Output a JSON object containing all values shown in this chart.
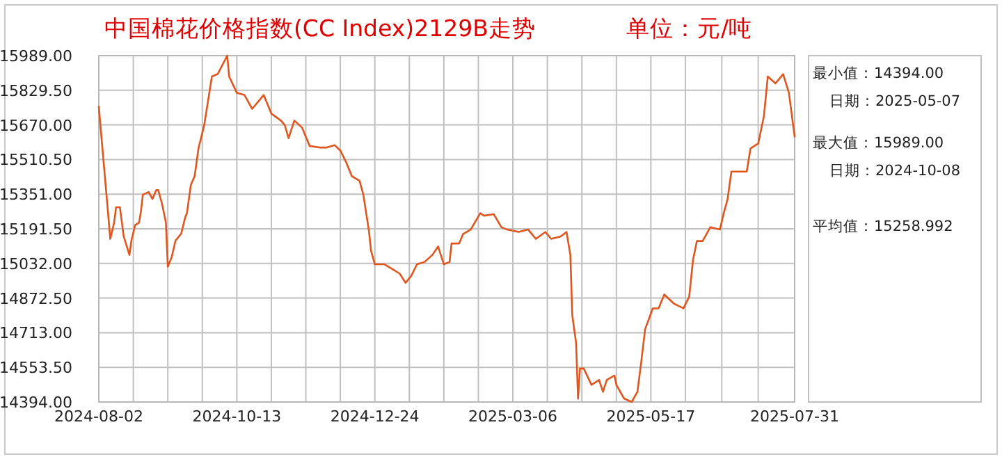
{
  "chart_data": {
    "type": "line",
    "title": "中国棉花价格指数(CC Index)2129B走势",
    "subtitle": "单位：元/吨",
    "annotations": [
      "最小值：14394.00",
      "日期：2025-05-07",
      "最大值：15989.00",
      "日期：2024-10-08",
      "平均值：15258.992"
    ],
    "x": [
      "2024-08-02",
      "2024-08-08",
      "2024-08-10",
      "2024-08-11",
      "2024-08-13",
      "2024-08-15",
      "2024-08-18",
      "2024-08-19",
      "2024-08-21",
      "2024-08-23",
      "2024-08-24",
      "2024-08-25",
      "2024-08-28",
      "2024-08-30",
      "2024-09-01",
      "2024-09-02",
      "2024-09-04",
      "2024-09-06",
      "2024-09-07",
      "2024-09-09",
      "2024-09-11",
      "2024-09-14",
      "2024-09-16",
      "2024-09-17",
      "2024-09-19",
      "2024-09-21",
      "2024-09-23",
      "2024-09-26",
      "2024-09-30",
      "2024-10-03",
      "2024-10-08",
      "2024-10-09",
      "2024-10-13",
      "2024-10-17",
      "2024-10-21",
      "2024-10-25",
      "2024-10-27",
      "2024-10-31",
      "2024-11-05",
      "2024-11-07",
      "2024-11-09",
      "2024-11-12",
      "2024-11-16",
      "2024-11-20",
      "2024-11-25",
      "2024-11-29",
      "2024-12-03",
      "2024-12-06",
      "2024-12-09",
      "2024-12-12",
      "2024-12-16",
      "2024-12-18",
      "2024-12-21",
      "2024-12-22",
      "2024-12-24",
      "2024-12-29",
      "2025-01-02",
      "2025-01-06",
      "2025-01-09",
      "2025-01-12",
      "2025-01-15",
      "2025-01-19",
      "2025-01-23",
      "2025-01-26",
      "2025-01-29",
      "2025-02-01",
      "2025-02-02",
      "2025-02-06",
      "2025-02-08",
      "2025-02-12",
      "2025-02-17",
      "2025-02-19",
      "2025-02-24",
      "2025-02-28",
      "2025-03-03",
      "2025-03-09",
      "2025-03-14",
      "2025-03-18",
      "2025-03-23",
      "2025-03-26",
      "2025-03-31",
      "2025-04-03",
      "2025-04-05",
      "2025-04-06",
      "2025-04-08",
      "2025-04-09",
      "2025-04-10",
      "2025-04-12",
      "2025-04-16",
      "2025-04-20",
      "2025-04-22",
      "2025-04-24",
      "2025-04-28",
      "2025-04-29",
      "2025-05-03",
      "2025-05-07",
      "2025-05-10",
      "2025-05-12",
      "2025-05-14",
      "2025-05-18",
      "2025-05-21",
      "2025-05-24",
      "2025-05-29",
      "2025-06-03",
      "2025-06-06",
      "2025-06-08",
      "2025-06-10",
      "2025-06-13",
      "2025-06-17",
      "2025-06-22",
      "2025-06-24",
      "2025-06-26",
      "2025-06-28",
      "2025-06-30",
      "2025-07-06",
      "2025-07-08",
      "2025-07-12",
      "2025-07-15",
      "2025-07-17",
      "2025-07-21",
      "2025-07-23",
      "2025-07-25",
      "2025-07-28",
      "2025-07-31"
    ],
    "series": [
      {
        "color": "#e0561e",
        "values": [
          15754,
          15145,
          15220,
          15291,
          15291,
          15156,
          15071,
          15137,
          15209,
          15220,
          15274,
          15349,
          15361,
          15329,
          15370,
          15370,
          15306,
          15220,
          15017,
          15060,
          15137,
          15169,
          15242,
          15265,
          15393,
          15434,
          15562,
          15669,
          15893,
          15904,
          15989,
          15893,
          15818,
          15808,
          15744,
          15786,
          15808,
          15722,
          15690,
          15669,
          15609,
          15690,
          15658,
          15573,
          15566,
          15566,
          15577,
          15552,
          15498,
          15434,
          15413,
          15349,
          15177,
          15092,
          15028,
          15028,
          15007,
          14985,
          14943,
          14975,
          15028,
          15039,
          15071,
          15110,
          15028,
          15039,
          15124,
          15124,
          15167,
          15188,
          15263,
          15252,
          15259,
          15199,
          15188,
          15177,
          15188,
          15145,
          15177,
          15145,
          15156,
          15177,
          15071,
          14793,
          14665,
          14409,
          14548,
          14548,
          14473,
          14495,
          14441,
          14495,
          14516,
          14473,
          14410,
          14394,
          14441,
          14580,
          14729,
          14825,
          14825,
          14889,
          14847,
          14825,
          14879,
          15049,
          15135,
          15135,
          15199,
          15188,
          15263,
          15327,
          15455,
          15455,
          15455,
          15562,
          15584,
          15712,
          15893,
          15861,
          15882,
          15904,
          15818,
          15616
        ]
      }
    ],
    "xlim": [
      "2024-08-02",
      "2025-07-31"
    ],
    "xticks": [
      {
        "value": "2024-08-02",
        "label": "2024-08-02"
      },
      {
        "value": "2024-08-20",
        "label": null
      },
      {
        "value": "2024-09-07",
        "label": null
      },
      {
        "value": "2024-09-25",
        "label": null
      },
      {
        "value": "2024-10-13",
        "label": "2024-10-13"
      },
      {
        "value": "2024-10-31",
        "label": null
      },
      {
        "value": "2024-11-18",
        "label": null
      },
      {
        "value": "2024-12-06",
        "label": null
      },
      {
        "value": "2024-12-24",
        "label": "2024-12-24"
      },
      {
        "value": "2025-01-11",
        "label": null
      },
      {
        "value": "2025-01-29",
        "label": null
      },
      {
        "value": "2025-02-16",
        "label": null
      },
      {
        "value": "2025-03-06",
        "label": "2025-03-06"
      },
      {
        "value": "2025-03-24",
        "label": null
      },
      {
        "value": "2025-04-11",
        "label": null
      },
      {
        "value": "2025-04-29",
        "label": null
      },
      {
        "value": "2025-05-17",
        "label": "2025-05-17"
      },
      {
        "value": "2025-06-04",
        "label": null
      },
      {
        "value": "2025-06-23",
        "label": null
      },
      {
        "value": "2025-07-12",
        "label": null
      },
      {
        "value": "2025-07-31",
        "label": "2025-07-31"
      }
    ],
    "ylim": [
      14394,
      15989
    ],
    "yticks": [
      {
        "value": 14394,
        "label": "14394.00"
      },
      {
        "value": 14553.5,
        "label": "14553.50"
      },
      {
        "value": 14713,
        "label": "14713.00"
      },
      {
        "value": 14872.5,
        "label": "14872.50"
      },
      {
        "value": 15032,
        "label": "15032.00"
      },
      {
        "value": 15191.5,
        "label": "15191.50"
      },
      {
        "value": 15351,
        "label": "15351.00"
      },
      {
        "value": 15510.5,
        "label": "15510.50"
      },
      {
        "value": 15670,
        "label": "15670.00"
      },
      {
        "value": 15829.5,
        "label": "15829.50"
      },
      {
        "value": 15989,
        "label": "15989.00"
      }
    ],
    "grid": true
  }
}
